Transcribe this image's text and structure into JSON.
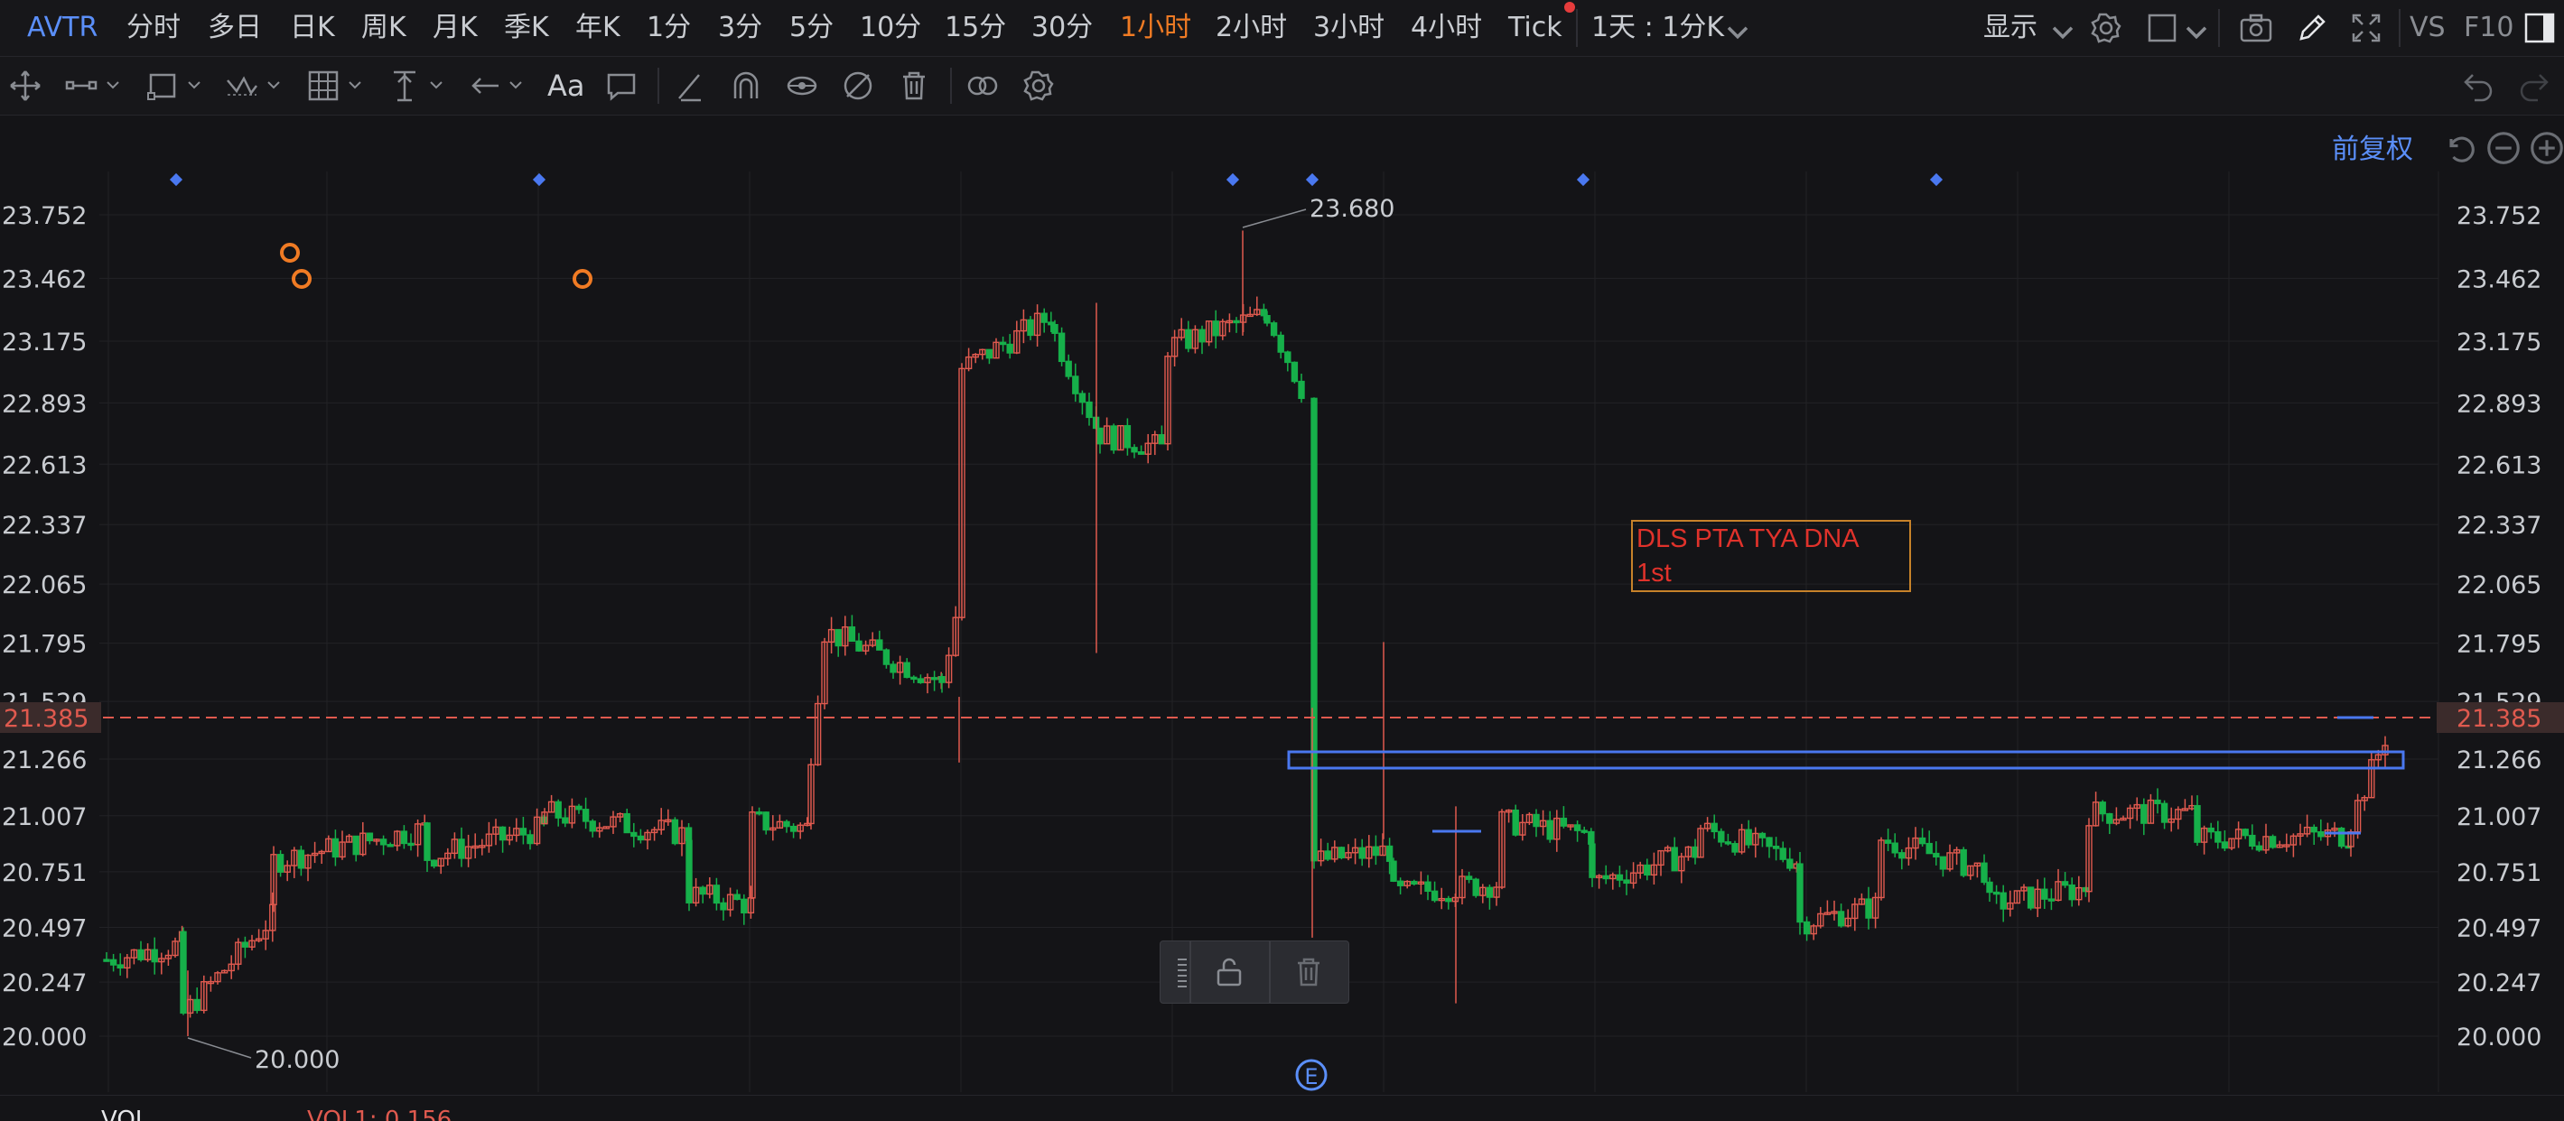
{
  "topbar": {
    "ticker": "AVTR",
    "timeframes": [
      "分时",
      "多日",
      "日K",
      "周K",
      "月K",
      "季K",
      "年K",
      "1分",
      "3分",
      "5分",
      "10分",
      "15分",
      "30分",
      "1小时",
      "2小时",
      "3小时",
      "4小时",
      "Tick"
    ],
    "active_timeframe": "1小时",
    "interval_selector": "1天 : 1分K",
    "display_label": "显示",
    "vs_label": "VS",
    "f10_label": "F10"
  },
  "toolbar": {
    "text_tool_label": "Aa"
  },
  "chart": {
    "adjust_label": "前复权",
    "price_axis_ticks": [
      "23.752",
      "23.462",
      "23.175",
      "22.893",
      "22.613",
      "22.337",
      "22.065",
      "21.795",
      "21.529",
      "21.266",
      "21.007",
      "20.751",
      "20.497",
      "20.247",
      "20.000"
    ],
    "current_price": "21.385",
    "high_label": "23.680",
    "low_label": "20.000",
    "annotation_line1": "DLS PTA TYA DNA",
    "annotation_line2": "1st",
    "event_marker": "E",
    "colors": {
      "up": "#e05a4f",
      "down": "#16b04a",
      "accent": "#5b8ff9",
      "active": "#f07b24",
      "annotation": "#e0322b"
    }
  },
  "indicator_bar": {
    "name": "VOL",
    "value_label": "VOL1: 0.156"
  }
}
